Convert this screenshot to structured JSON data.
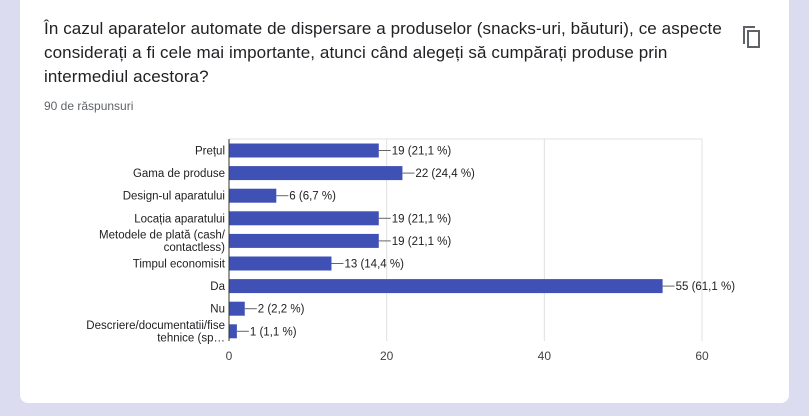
{
  "question": {
    "text": "În cazul aparatelor automate de dispersare a produselor (snacks-uri, băuturi), ce aspecte considerați a fi cele mai importante, atunci când alegeți să cumpărați produse prin intermediul acestora?",
    "responses_count": "90 de răspunsuri",
    "copy_icon": "copy-icon"
  },
  "colors": {
    "bar": "#3f51b5",
    "grid": "#e0e0e0",
    "text": "#202124",
    "page_bg": "#dcdcf0"
  },
  "chart_data": {
    "type": "bar",
    "orientation": "horizontal",
    "categories": [
      [
        "Prețul"
      ],
      [
        "Gama de produse"
      ],
      [
        "Design-ul aparatului"
      ],
      [
        "Locația aparatului"
      ],
      [
        "Metodele de plată (cash/",
        "contactless)"
      ],
      [
        "Timpul economisit"
      ],
      [
        "Da"
      ],
      [
        "Nu"
      ],
      [
        "Descriere/documentatii/fise",
        "tehnice (sp…"
      ]
    ],
    "values": [
      19,
      22,
      6,
      19,
      19,
      13,
      55,
      2,
      1
    ],
    "value_labels": [
      "19 (21,1 %)",
      "22 (24,4 %)",
      "6 (6,7 %)",
      "19 (21,1 %)",
      "19 (21,1 %)",
      "13 (14,4 %)",
      "55 (61,1 %)",
      "2 (2,2 %)",
      "1 (1,1 %)"
    ],
    "xlim": [
      0,
      60
    ],
    "xticks": [
      0,
      20,
      40,
      60
    ],
    "xtick_labels": [
      "0",
      "20",
      "40",
      "60"
    ],
    "grid": true,
    "legend": "none"
  }
}
